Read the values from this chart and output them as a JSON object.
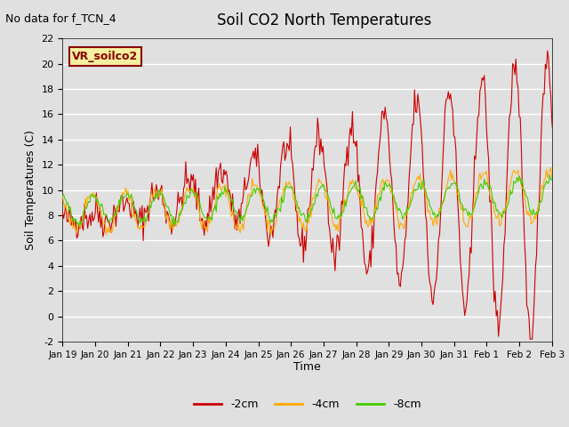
{
  "title": "Soil CO2 North Temperatures",
  "no_data_text": "No data for f_TCN_4",
  "sensor_label": "VR_soilco2",
  "ylabel": "Soil Temperatures (C)",
  "xlabel": "Time",
  "ylim": [
    -2,
    22
  ],
  "plot_bg_color": "#e0e0e0",
  "colors": {
    "2cm": "#cc0000",
    "4cm": "#ffaa00",
    "8cm": "#44cc00"
  },
  "legend": [
    "-2cm",
    "-4cm",
    "-8cm"
  ],
  "xtick_labels": [
    "Jan 19",
    "Jan 20",
    "Jan 21",
    "Jan 22",
    "Jan 23",
    "Jan 24",
    "Jan 25",
    "Jan 26",
    "Jan 27",
    "Jan 28",
    "Jan 29",
    "Jan 30",
    "Jan 31",
    "Feb 1",
    "Feb 2",
    "Feb 3"
  ],
  "num_points": 480
}
